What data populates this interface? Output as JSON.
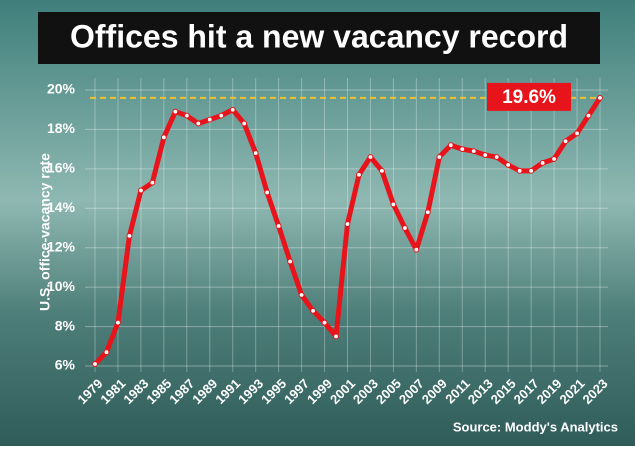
{
  "chart_data": {
    "type": "line",
    "title": "Offices hit a new vacancy record",
    "ylabel": "U.S. office-vacancy rate",
    "source": "Source: Moddy's Analytics",
    "x": [
      1979,
      1980,
      1981,
      1982,
      1983,
      1984,
      1985,
      1986,
      1987,
      1988,
      1989,
      1990,
      1991,
      1992,
      1993,
      1994,
      1995,
      1996,
      1997,
      1998,
      1999,
      2000,
      2001,
      2002,
      2003,
      2004,
      2005,
      2006,
      2007,
      2008,
      2009,
      2010,
      2011,
      2012,
      2013,
      2014,
      2015,
      2016,
      2017,
      2018,
      2019,
      2020,
      2021,
      2022,
      2023
    ],
    "series": [
      {
        "name": "Vacancy rate",
        "color": "#e8141b",
        "values": [
          6.1,
          6.7,
          8.2,
          12.6,
          14.9,
          15.3,
          17.6,
          18.9,
          18.7,
          18.3,
          18.5,
          18.7,
          19.0,
          18.3,
          16.8,
          14.8,
          13.1,
          11.3,
          9.6,
          8.8,
          8.2,
          7.5,
          13.2,
          15.7,
          16.6,
          15.9,
          14.2,
          13.0,
          11.9,
          13.8,
          16.6,
          17.2,
          17.0,
          16.9,
          16.7,
          16.6,
          16.2,
          15.9,
          15.9,
          16.3,
          16.5,
          17.4,
          17.8,
          18.7,
          19.6
        ]
      }
    ],
    "xlim": [
      1979,
      2023
    ],
    "xticks": [
      1979,
      1981,
      1983,
      1985,
      1987,
      1989,
      1991,
      1993,
      1995,
      1997,
      1999,
      2001,
      2003,
      2005,
      2007,
      2009,
      2011,
      2013,
      2015,
      2017,
      2019,
      2021,
      2023
    ],
    "ylim": [
      6,
      20
    ],
    "yticks": [
      {
        "value": 6,
        "label": "6%"
      },
      {
        "value": 8,
        "label": "8%"
      },
      {
        "value": 10,
        "label": "10%"
      },
      {
        "value": 12,
        "label": "12%"
      },
      {
        "value": 14,
        "label": "14%"
      },
      {
        "value": 16,
        "label": "16%"
      },
      {
        "value": 18,
        "label": "18%"
      },
      {
        "value": 20,
        "label": "20%"
      }
    ],
    "grid": true,
    "annotation": {
      "value": 19.6,
      "label": "19.6%",
      "color": "#f2c12e"
    }
  }
}
